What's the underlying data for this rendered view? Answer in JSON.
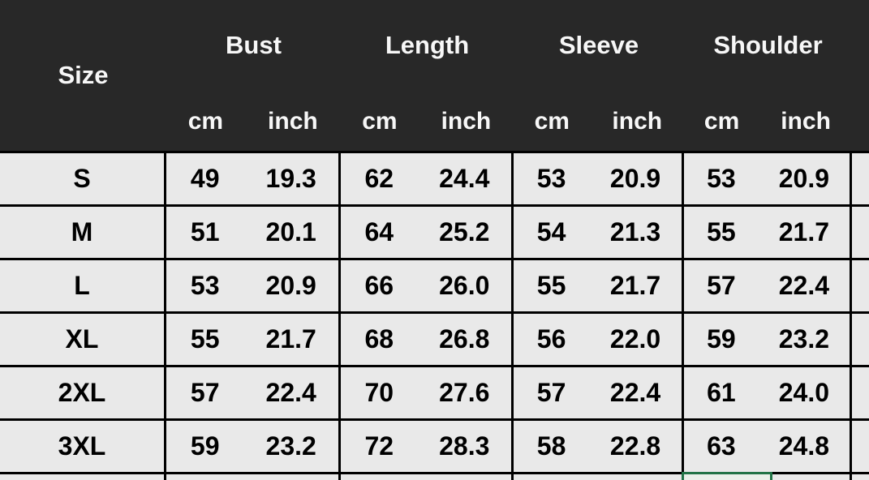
{
  "chart_data": {
    "type": "table",
    "corner_label": "Size",
    "groups": [
      {
        "label": "Bust",
        "units": [
          "cm",
          "inch"
        ]
      },
      {
        "label": "Length",
        "units": [
          "cm",
          "inch"
        ]
      },
      {
        "label": "Sleeve",
        "units": [
          "cm",
          "inch"
        ]
      },
      {
        "label": "Shoulder",
        "units": [
          "cm",
          "inch"
        ]
      }
    ],
    "rows": [
      {
        "size": "S",
        "values": [
          "49",
          "19.3",
          "62",
          "24.4",
          "53",
          "20.9",
          "53",
          "20.9"
        ]
      },
      {
        "size": "M",
        "values": [
          "51",
          "20.1",
          "64",
          "25.2",
          "54",
          "21.3",
          "55",
          "21.7"
        ]
      },
      {
        "size": "L",
        "values": [
          "53",
          "20.9",
          "66",
          "26.0",
          "55",
          "21.7",
          "57",
          "22.4"
        ]
      },
      {
        "size": "XL",
        "values": [
          "55",
          "21.7",
          "68",
          "26.8",
          "56",
          "22.0",
          "59",
          "23.2"
        ]
      },
      {
        "size": "2XL",
        "values": [
          "57",
          "22.4",
          "70",
          "27.6",
          "57",
          "22.4",
          "61",
          "24.0"
        ]
      },
      {
        "size": "3XL",
        "values": [
          "59",
          "23.2",
          "72",
          "28.3",
          "58",
          "22.8",
          "63",
          "24.8"
        ]
      }
    ]
  },
  "colors": {
    "header_bg": "#282828",
    "header_text": "#f7f7f7",
    "row_bg": "#e9e9e9",
    "grid_line": "#000000",
    "cell_text": "#000000",
    "selection_green": "#217346"
  }
}
